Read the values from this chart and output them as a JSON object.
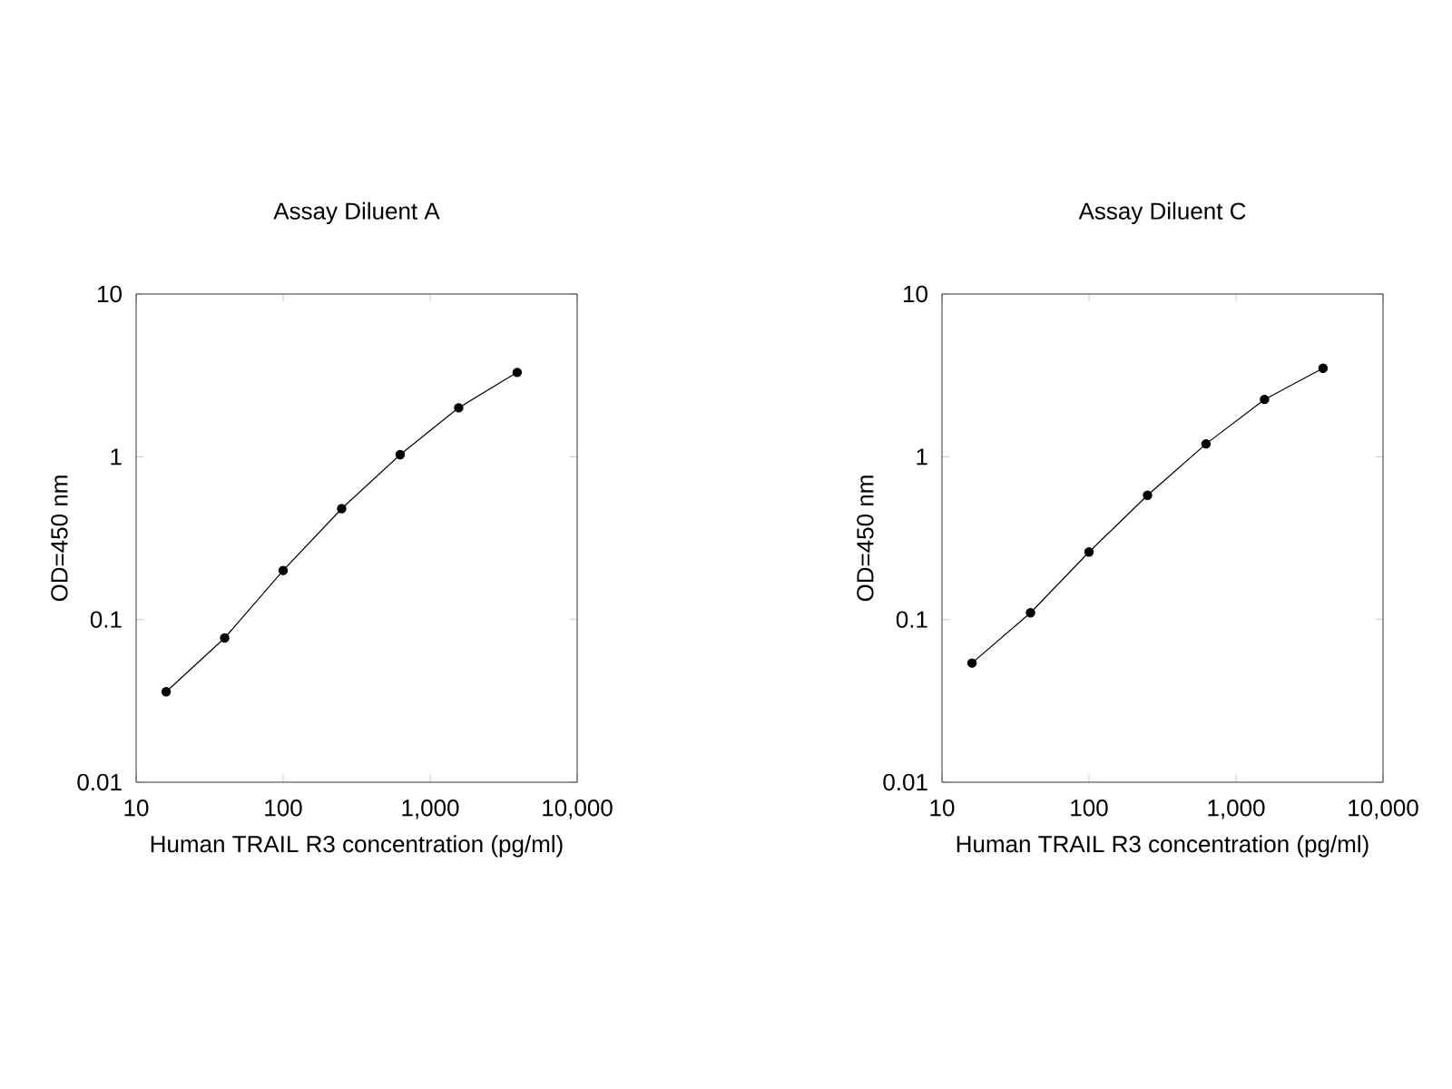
{
  "chart_data": [
    {
      "type": "line",
      "title": "Assay Diluent A",
      "xlabel": "Human TRAIL R3 concentration (pg/ml)",
      "ylabel": "OD=450 nm",
      "x": [
        16,
        40,
        100,
        250,
        625,
        1562.5,
        3906.25
      ],
      "values": [
        0.036,
        0.077,
        0.2,
        0.48,
        1.03,
        2.0,
        3.3
      ],
      "color": "#000000",
      "xlim": [
        10,
        10000
      ],
      "ylim": [
        0.01,
        10
      ],
      "xticks": [
        {
          "value": 10,
          "label": "10"
        },
        {
          "value": 100,
          "label": "100"
        },
        {
          "value": 1000,
          "label": "1,000"
        },
        {
          "value": 10000,
          "label": "10,000"
        }
      ],
      "yticks": [
        0.01,
        0.1,
        1,
        10
      ],
      "log": "xy",
      "marker": "circle"
    },
    {
      "type": "line",
      "title": "Assay Diluent C",
      "xlabel": "Human TRAIL R3 concentration (pg/ml)",
      "ylabel": "OD=450 nm",
      "x": [
        16,
        40,
        100,
        250,
        625,
        1562.5,
        3906.25
      ],
      "values": [
        0.054,
        0.11,
        0.26,
        0.58,
        1.2,
        2.25,
        3.5
      ],
      "color": "#000000",
      "xlim": [
        10,
        10000
      ],
      "ylim": [
        0.01,
        10
      ],
      "xticks": [
        {
          "value": 10,
          "label": "10"
        },
        {
          "value": 100,
          "label": "100"
        },
        {
          "value": 1000,
          "label": "1,000"
        },
        {
          "value": 10000,
          "label": "10,000"
        }
      ],
      "yticks": [
        0.01,
        0.1,
        1,
        10
      ],
      "log": "xy",
      "marker": "circle"
    }
  ]
}
